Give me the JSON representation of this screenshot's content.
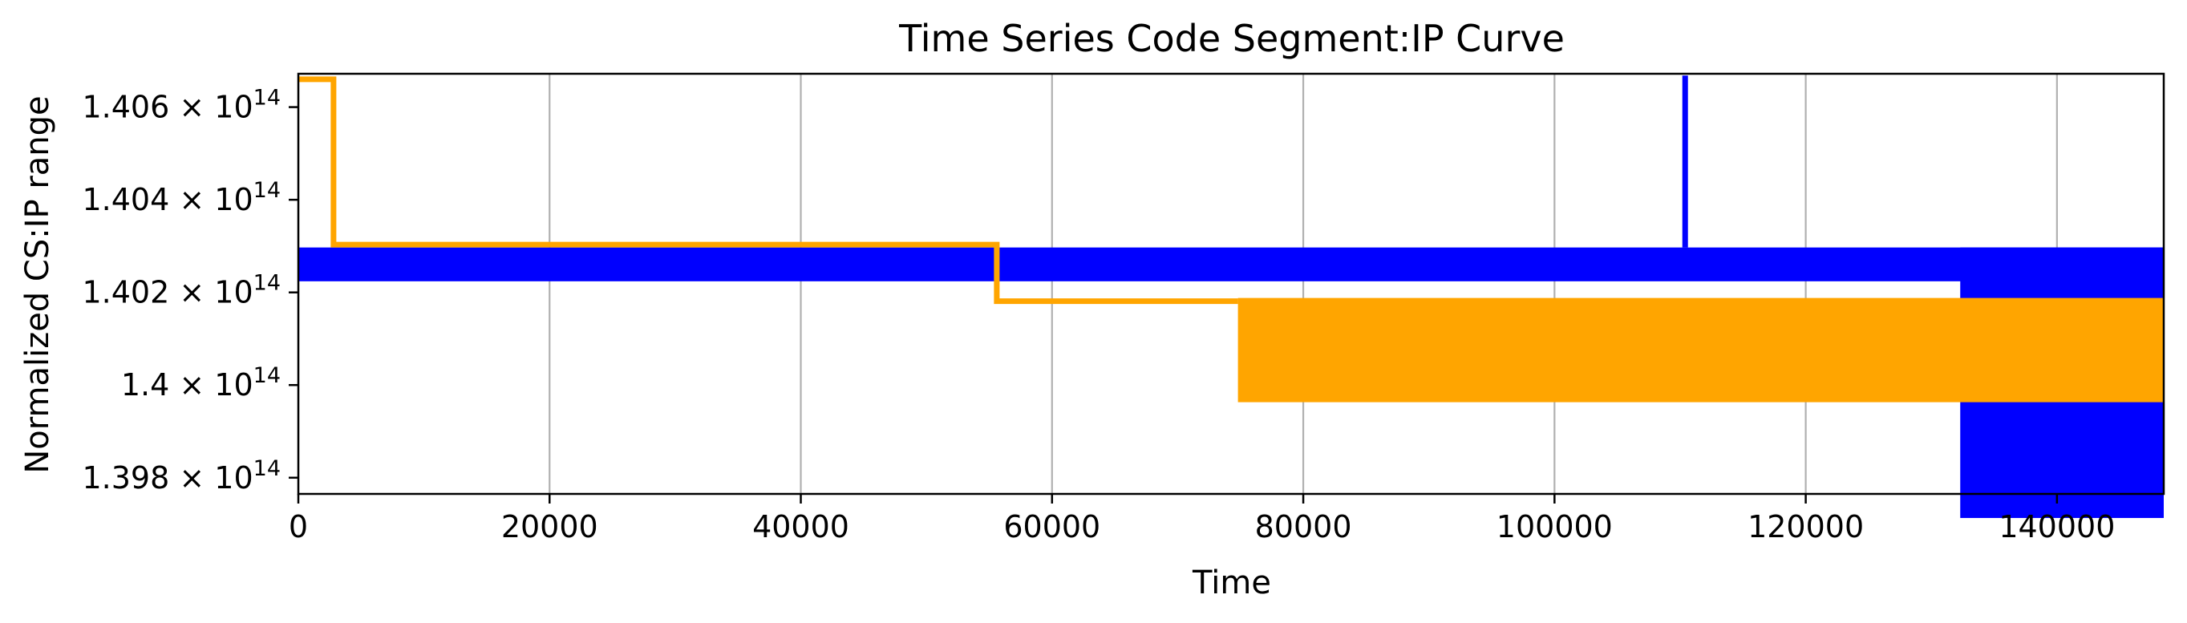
{
  "chart_data": {
    "type": "line",
    "title": "Time Series Code Segment:IP Curve",
    "xlabel": "Time",
    "ylabel": "Normalized CS:IP range",
    "xlim": [
      0,
      148500
    ],
    "ylim": [
      139765000000000.0,
      140672000000000.0
    ],
    "x_ticks": [
      0,
      20000,
      40000,
      60000,
      80000,
      100000,
      120000,
      140000
    ],
    "x_tick_labels": [
      "0",
      "20000",
      "40000",
      "60000",
      "80000",
      "100000",
      "120000",
      "140000"
    ],
    "y_ticks": [
      139800000000000.0,
      140000000000000.0,
      140200000000000.0,
      140400000000000.0,
      140600000000000.0
    ],
    "y_tick_labels": [
      {
        "mantissa": "1.398",
        "base": "10",
        "exp": "14"
      },
      {
        "mantissa": "1.4",
        "base": "10",
        "exp": "14"
      },
      {
        "mantissa": "1.402",
        "base": "10",
        "exp": "14"
      },
      {
        "mantissa": "1.404",
        "base": "10",
        "exp": "14"
      },
      {
        "mantissa": "1.406",
        "base": "10",
        "exp": "14"
      }
    ],
    "grid": {
      "x": true,
      "y": false
    },
    "series": [
      {
        "color": "#0000ff",
        "bands": [
          {
            "x0": 0,
            "x1": 148500,
            "y0": 140224000000000.0,
            "y1": 140297000000000.0
          },
          {
            "x0": 132300,
            "x1": 148500,
            "y0": 139713000000000.0,
            "y1": 140297000000000.0
          }
        ],
        "lines": [
          {
            "x": [
              110400,
              110400
            ],
            "y": [
              140297000000000.0,
              140668000000000.0
            ]
          }
        ]
      },
      {
        "color": "#ffa500",
        "lines": [
          {
            "x": [
              0,
              2800,
              2800,
              55600,
              55600,
              74800
            ],
            "y": [
              140660000000000.0,
              140660000000000.0,
              140303000000000.0,
              140303000000000.0,
              140181000000000.0,
              140181000000000.0
            ]
          }
        ],
        "bands": [
          {
            "x0": 74800,
            "x1": 148500,
            "y0": 139963000000000.0,
            "y1": 140188000000000.0
          }
        ]
      }
    ]
  }
}
